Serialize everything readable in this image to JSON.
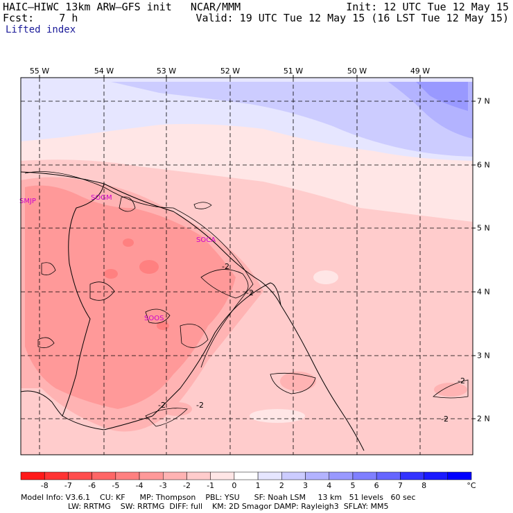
{
  "header": {
    "title": "HAIC–HIWC 13km ARW–GFS init   NCAR/MMM",
    "fcst": "Fcst:    7 h",
    "init": "Init: 12 UTC Tue 12 May 15",
    "valid": "Valid: 19 UTC Tue 12 May 15 (16 LST Tue 12 May 15)",
    "field": "Lifted index"
  },
  "map": {
    "lon_labels": [
      "55 W",
      "54 W",
      "53 W",
      "52 W",
      "51 W",
      "50 W",
      "49 W"
    ],
    "lat_labels": [
      "7 N",
      "6 N",
      "5 N",
      "4 N",
      "3 N",
      "2 N"
    ],
    "stations": [
      "SMJP",
      "SOGM",
      "SOCA",
      "SOOS"
    ],
    "contour_labels": [
      "-2",
      "-2",
      "-2",
      "-2",
      "-2",
      "-2"
    ]
  },
  "colorbar": {
    "labels": [
      "-8",
      "-7",
      "-6",
      "-5",
      "-4",
      "-3",
      "-2",
      "-1",
      "0",
      "1",
      "2",
      "3",
      "4",
      "5",
      "6",
      "7",
      "8"
    ],
    "unit": "°C",
    "colors": [
      "#ff1a1a",
      "#ff3333",
      "#ff4d4d",
      "#ff6666",
      "#ff8080",
      "#ff9999",
      "#ffb3b3",
      "#ffcccc",
      "#ffe6e6",
      "#ffffff",
      "#e6e6ff",
      "#ccccff",
      "#b3b3ff",
      "#9999ff",
      "#7f7fff",
      "#6666ff",
      "#3333ff",
      "#1a1aff",
      "#0000ff"
    ]
  },
  "footer": {
    "line1": "Model Info: V3.6.1    CU: KF      MP: Thompson    PBL: YSU      SF: Noah LSM     13 km   51 levels   60 sec",
    "line2": "LW: RRTMG    SW: RRTMG  DIFF: full    KM: 2D Smagor DAMP: Rayleigh3  SFLAY: MM5"
  }
}
